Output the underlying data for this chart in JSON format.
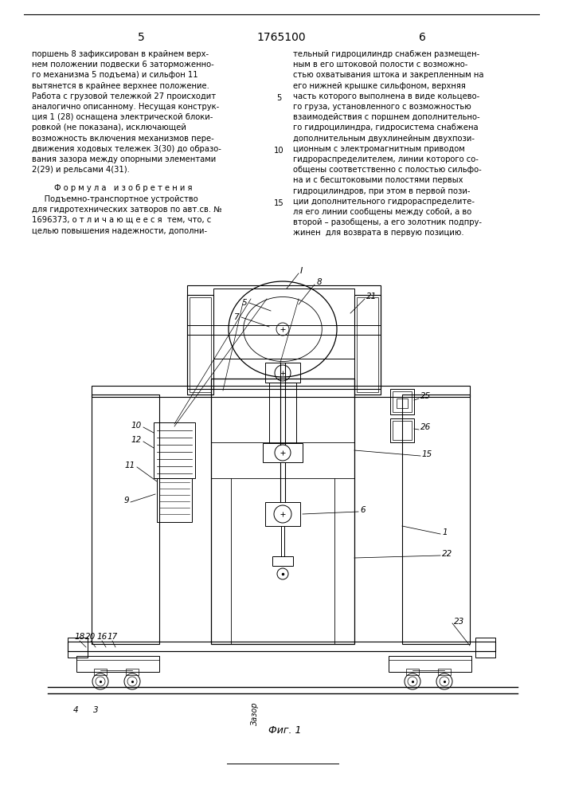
{
  "page_number_left": "5",
  "patent_number": "1765100",
  "page_number_right": "6",
  "text_left": [
    "поршень 8 зафиксирован в крайнем верх-",
    "нем положении подвески 6 заторможенно-",
    "го механизма 5 подъема) и сильфон 11",
    "вытянется в крайнее верхнее положение.",
    "Работа с грузовой тележкой 27 происходит",
    "аналогично описанному. Несущая конструк-",
    "ция 1 (28) оснащена электрической блоки-",
    "ровкой (не показана), исключающей",
    "возможность включения механизмов пере-",
    "движения ходовых тележек 3(30) до образо-",
    "вания зазора между опорными элементами",
    "2(29) и рельсами 4(31)."
  ],
  "text_right": [
    "тельный гидроцилиндр снабжен размещен-",
    "ным в его штоковой полости с возможно-",
    "стью охватывания штока и закрепленным на",
    "его нижней крышке сильфоном, верхняя",
    "часть которого выполнена в виде кольцево-",
    "го груза, установленного с возможностью",
    "взаимодействия с поршнем дополнительно-",
    "го гидроцилиндра, гидросистема снабжена",
    "дополнительным двухлинейным двухпози-",
    "ционным с электромагнитным приводом",
    "гидрораспределителем, линии которого со-",
    "общены соответственно с полостью сильфо-",
    "на и с бесштоковыми полостями первых",
    "гидроцилиндров, при этом в первой пози-",
    "ции дополнительного гидрораспределите-",
    "ля его линии сообщены между собой, а во",
    "второй – разобщены, а его золотник подпру-",
    "жинен  для возврата в первую позицию."
  ],
  "formula_header": "Ф о р м у л а   и з о б р е т е н и я",
  "formula_text": [
    "     Подъемно-транспортное устройство",
    "для гидротехнических затворов по авт.св. №",
    "1696373, о т л и ч а ю щ е е с я  тем, что, с",
    "целью повышения надежности, дополни-"
  ],
  "fig_caption": "Фиг. 1",
  "background_color": "#ffffff",
  "text_color": "#000000"
}
